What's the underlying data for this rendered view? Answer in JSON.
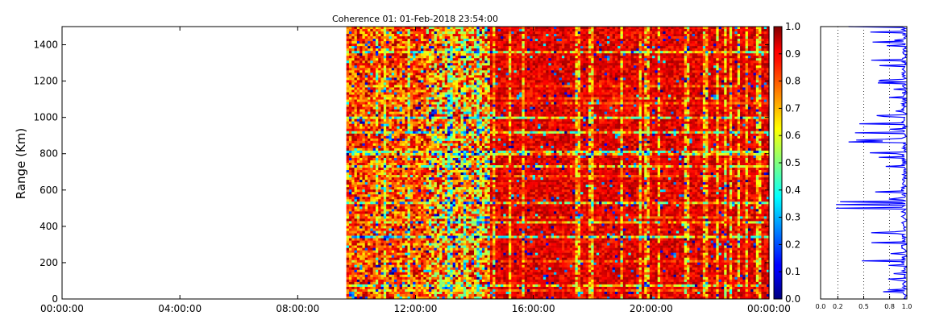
{
  "chart_data": [
    {
      "type": "heatmap",
      "title": "Coherence 01: 01-Feb-2018 23:54:00",
      "xlabel": "",
      "ylabel": "Range (Km)",
      "x_tick_labels": [
        "00:00:00",
        "04:00:00",
        "08:00:00",
        "12:00:00",
        "16:00:00",
        "20:00:00",
        "00:00:00"
      ],
      "x_range_hours": [
        0,
        24
      ],
      "data_start_hours": 9.65,
      "ylim": [
        0,
        1500
      ],
      "y_ticks": [
        0,
        200,
        400,
        600,
        800,
        1000,
        1200,
        1400
      ],
      "colorbar": {
        "range": [
          0.0,
          1.0
        ],
        "ticks": [
          "0.0",
          "0.1",
          "0.2",
          "0.3",
          "0.4",
          "0.5",
          "0.6",
          "0.7",
          "0.8",
          "0.9",
          "1.0"
        ],
        "colormap": "jet"
      },
      "grid": false
    },
    {
      "type": "line",
      "series_color": "#0000ff",
      "xlim": [
        0.0,
        1.0
      ],
      "x_ticks": [
        "0.0",
        "0.2",
        "0.5",
        "0.8",
        "1.0"
      ],
      "x_gridlines": [
        0.2,
        0.5,
        0.8
      ],
      "ylim": [
        0,
        1500
      ],
      "grid": "dotted vertical"
    }
  ]
}
